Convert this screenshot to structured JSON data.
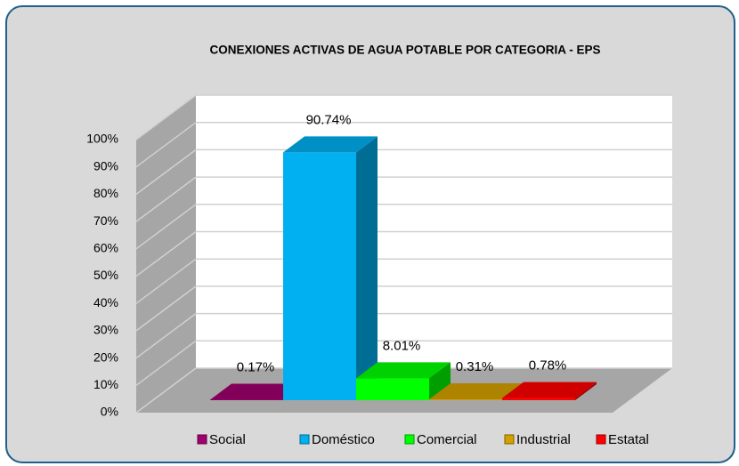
{
  "chart_data": {
    "type": "bar3d",
    "title": "CONEXIONES ACTIVAS DE AGUA POTABLE POR CATEGORIA  - EPS",
    "categories": [
      "Social",
      "Doméstico",
      "Comercial",
      "Industrial",
      "Estatal"
    ],
    "values": [
      0.17,
      90.74,
      8.01,
      0.31,
      0.78
    ],
    "value_labels": [
      "0.17%",
      "90.74%",
      "8.01%",
      "0.31%",
      "0.78%"
    ],
    "colors": [
      "#a0006e",
      "#00b0f0",
      "#00ff00",
      "#d4a000",
      "#ff0000"
    ],
    "ylim": [
      0,
      100
    ],
    "yticks": [
      {
        "value": 0,
        "label": "0%"
      },
      {
        "value": 10,
        "label": "10%"
      },
      {
        "value": 20,
        "label": "20%"
      },
      {
        "value": 30,
        "label": "30%"
      },
      {
        "value": 40,
        "label": "40%"
      },
      {
        "value": 50,
        "label": "50%"
      },
      {
        "value": 60,
        "label": "60%"
      },
      {
        "value": 70,
        "label": "70%"
      },
      {
        "value": 80,
        "label": "80%"
      },
      {
        "value": 90,
        "label": "90%"
      },
      {
        "value": 100,
        "label": "100%"
      }
    ],
    "grid": true,
    "legend": "bottom"
  }
}
